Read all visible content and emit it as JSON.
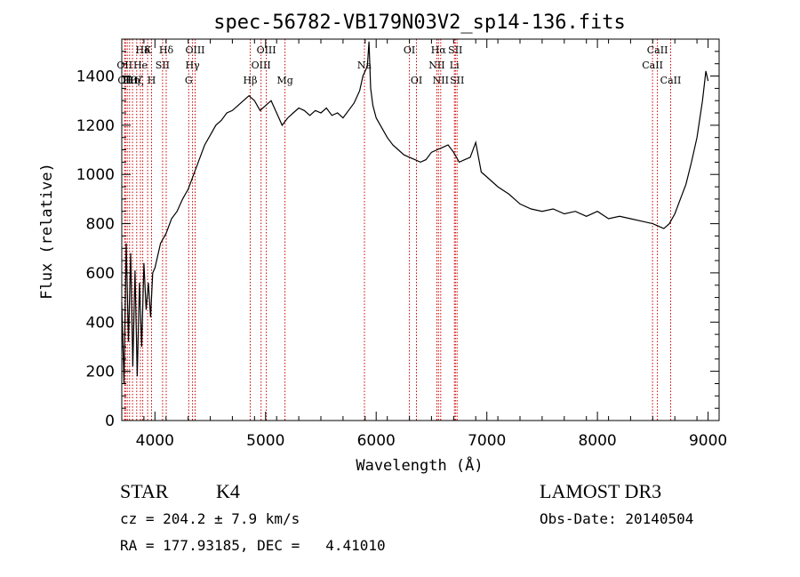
{
  "chart_data": {
    "type": "line",
    "title": "spec-56782-VB179N03V2_sp14-136.fits",
    "xlabel": "Wavelength (Å)",
    "ylabel": "Flux (relative)",
    "xlim": [
      3700,
      9100
    ],
    "ylim": [
      0,
      1550
    ],
    "x_ticks": [
      4000,
      5000,
      6000,
      7000,
      8000,
      9000
    ],
    "y_ticks": [
      0,
      200,
      400,
      600,
      800,
      1000,
      1200,
      1400
    ],
    "line_color": "#000000",
    "marker_color": "#cc0000",
    "series": [
      {
        "x": [
          3700,
          3720,
          3740,
          3760,
          3780,
          3800,
          3820,
          3840,
          3860,
          3880,
          3900,
          3920,
          3940,
          3960,
          3980,
          4000,
          4050,
          4100,
          4150,
          4200,
          4250,
          4300,
          4350,
          4400,
          4450,
          4500,
          4550,
          4600,
          4650,
          4700,
          4750,
          4800,
          4850,
          4900,
          4950,
          5000,
          5050,
          5100,
          5150,
          5200,
          5250,
          5300,
          5350,
          5400,
          5450,
          5500,
          5550,
          5600,
          5650,
          5700,
          5750,
          5800,
          5850,
          5880,
          5900,
          5920,
          5935,
          5950,
          5970,
          6000,
          6050,
          6100,
          6150,
          6200,
          6250,
          6300,
          6350,
          6400,
          6450,
          6500,
          6550,
          6600,
          6650,
          6700,
          6750,
          6800,
          6850,
          6900,
          6950,
          7000,
          7100,
          7200,
          7300,
          7400,
          7500,
          7600,
          7700,
          7800,
          7900,
          8000,
          8100,
          8200,
          8300,
          8400,
          8500,
          8550,
          8600,
          8650,
          8700,
          8750,
          8800,
          8850,
          8900,
          8950,
          8980,
          9000
        ],
        "y": [
          480,
          150,
          720,
          320,
          680,
          220,
          610,
          180,
          560,
          300,
          640,
          450,
          560,
          420,
          600,
          620,
          720,
          760,
          820,
          850,
          900,
          940,
          1000,
          1060,
          1120,
          1160,
          1200,
          1220,
          1250,
          1260,
          1280,
          1300,
          1320,
          1300,
          1260,
          1280,
          1300,
          1250,
          1200,
          1230,
          1250,
          1270,
          1260,
          1240,
          1260,
          1250,
          1270,
          1240,
          1250,
          1230,
          1260,
          1290,
          1340,
          1400,
          1420,
          1440,
          1540,
          1350,
          1280,
          1230,
          1190,
          1150,
          1120,
          1100,
          1080,
          1070,
          1060,
          1050,
          1060,
          1090,
          1100,
          1110,
          1120,
          1090,
          1050,
          1060,
          1070,
          1130,
          1010,
          990,
          950,
          920,
          880,
          860,
          850,
          860,
          840,
          850,
          830,
          850,
          820,
          830,
          820,
          810,
          800,
          790,
          780,
          800,
          840,
          900,
          960,
          1050,
          1150,
          1300,
          1420,
          1380
        ]
      }
    ],
    "line_markers": [
      {
        "wave": 3726,
        "top": "OII",
        "row": 1
      },
      {
        "wave": 3734,
        "top": "OII",
        "row": 2
      },
      {
        "wave": 3750,
        "top": "H",
        "row": 2
      },
      {
        "wave": 3771,
        "top": "Hθ",
        "row": 2
      },
      {
        "wave": 3797,
        "top": "Hη",
        "row": 2
      },
      {
        "wave": 3835,
        "top": "Hζ",
        "row": 2
      },
      {
        "wave": 3869,
        "top": "He",
        "row": 1
      },
      {
        "wave": 3890,
        "top": "Hδ",
        "row": 0
      },
      {
        "wave": 3934,
        "top": "K",
        "row": 0
      },
      {
        "wave": 3969,
        "top": "H",
        "row": 2
      },
      {
        "wave": 4069,
        "top": "SII",
        "row": 1
      },
      {
        "wave": 4102,
        "top": "Hδ",
        "row": 0
      },
      {
        "wave": 4305,
        "top": "G",
        "row": 2
      },
      {
        "wave": 4340,
        "top": "Hγ",
        "row": 1
      },
      {
        "wave": 4363,
        "top": "OIII",
        "row": 0
      },
      {
        "wave": 4861,
        "top": "Hβ",
        "row": 2
      },
      {
        "wave": 4959,
        "top": "OIII",
        "row": 1
      },
      {
        "wave": 5007,
        "top": "OIII",
        "row": 0
      },
      {
        "wave": 5175,
        "top": "Mg",
        "row": 2
      },
      {
        "wave": 5894,
        "top": "Na",
        "row": 1
      },
      {
        "wave": 6300,
        "top": "OI",
        "row": 0
      },
      {
        "wave": 6364,
        "top": "OI",
        "row": 2
      },
      {
        "wave": 6548,
        "top": "NII",
        "row": 1
      },
      {
        "wave": 6563,
        "top": "Hα",
        "row": 0
      },
      {
        "wave": 6583,
        "top": "NII",
        "row": 2
      },
      {
        "wave": 6707,
        "top": "Li",
        "row": 1
      },
      {
        "wave": 6716,
        "top": "SII",
        "row": 0
      },
      {
        "wave": 6731,
        "top": "SII",
        "row": 2
      },
      {
        "wave": 8498,
        "top": "CaII",
        "row": 1
      },
      {
        "wave": 8542,
        "top": "CaII",
        "row": 0
      },
      {
        "wave": 8662,
        "top": "CaII",
        "row": 2
      }
    ]
  },
  "info": {
    "class": "STAR",
    "subclass": "K4",
    "cz": "cz = 204.2 ± 7.9 km/s",
    "coords": "RA = 177.93185, DEC =   4.41010",
    "survey": "LAMOST DR3",
    "obs_date": "Obs-Date: 20140504"
  }
}
